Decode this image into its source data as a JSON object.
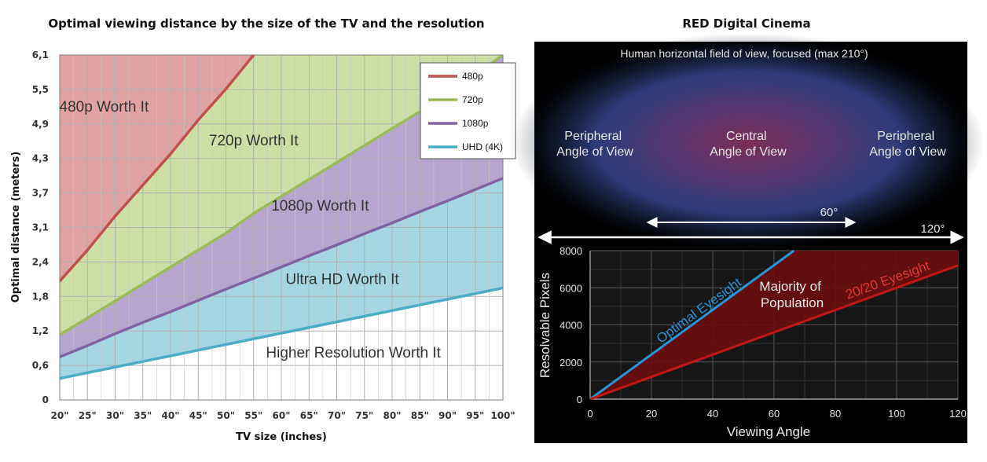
{
  "chart_data": [
    {
      "type": "area",
      "title": "Optimal viewing distance by the size of the TV and the resolution",
      "xlabel": "TV size (inches)",
      "ylabel": "Optimal distance (meters)",
      "x_ticks": [
        "20\"",
        "25\"",
        "30\"",
        "35\"",
        "40\"",
        "45\"",
        "50\"",
        "55\"",
        "60\"",
        "65\"",
        "70\"",
        "75\"",
        "80\"",
        "85\"",
        "90\"",
        "95\"",
        "100\""
      ],
      "y_ticks": [
        "0",
        "0,6",
        "1,2",
        "1,8",
        "2,4",
        "3,1",
        "3,7",
        "4,3",
        "4,9",
        "5,5",
        "6,1"
      ],
      "xlim": [
        20,
        100
      ],
      "ylim": [
        0,
        6.1
      ],
      "grid": true,
      "legend_position": "top-right",
      "x": [
        20,
        25,
        30,
        35,
        40,
        45,
        50,
        55,
        60,
        65,
        70,
        75,
        80,
        85,
        90,
        95,
        100
      ],
      "series": [
        {
          "name": "480p",
          "color": "#c0504d",
          "values": [
            2.1,
            2.65,
            3.25,
            3.8,
            4.35,
            4.95,
            5.5,
            6.1,
            null,
            null,
            null,
            null,
            null,
            null,
            null,
            null,
            null
          ]
        },
        {
          "name": "720p",
          "color": "#9bbb59",
          "values": [
            1.15,
            1.45,
            1.75,
            2.05,
            2.35,
            2.65,
            2.95,
            3.3,
            3.6,
            3.9,
            4.2,
            4.5,
            4.8,
            5.1,
            5.4,
            5.75,
            6.1
          ]
        },
        {
          "name": "1080p",
          "color": "#8064a2",
          "values": [
            0.76,
            0.96,
            1.17,
            1.37,
            1.56,
            1.76,
            1.96,
            2.15,
            2.35,
            2.55,
            2.74,
            2.94,
            3.13,
            3.33,
            3.52,
            3.72,
            3.92
          ]
        },
        {
          "name": "UHD (4K)",
          "color": "#4bacc6",
          "values": [
            0.38,
            0.48,
            0.58,
            0.68,
            0.78,
            0.88,
            0.98,
            1.08,
            1.18,
            1.28,
            1.38,
            1.48,
            1.58,
            1.68,
            1.78,
            1.88,
            1.98
          ]
        }
      ],
      "region_labels": [
        {
          "text": "480p Worth It",
          "x": 28,
          "y": 5.1,
          "fill": "#c0504d"
        },
        {
          "text": "720p Worth It",
          "x": 55,
          "y": 4.5,
          "fill": "#9bbb59"
        },
        {
          "text": "1080p Worth It",
          "x": 67,
          "y": 3.35,
          "fill": "#8064a2"
        },
        {
          "text": "Ultra HD Worth It",
          "x": 71,
          "y": 2.05,
          "fill": "#4bacc6"
        },
        {
          "text": "Higher Resolution Worth It",
          "x": 73,
          "y": 0.75,
          "fill": "#ffffff"
        }
      ]
    },
    {
      "type": "line",
      "title": "RED Digital Cinema",
      "field_of_view_title": "Human horizontal field of view, focused (max 210°)",
      "fov_labels": {
        "peripheral_left": [
          "Peripheral",
          "Angle of View"
        ],
        "central": [
          "Central",
          "Angle of View"
        ],
        "peripheral_right": [
          "Peripheral",
          "Angle of View"
        ],
        "angle_60": "60°",
        "angle_120": "120°"
      },
      "xlabel": "Viewing Angle",
      "ylabel": "Resolvable Pixels",
      "x_ticks": [
        "0",
        "20",
        "40",
        "60",
        "80",
        "100",
        "120"
      ],
      "y_ticks": [
        "0",
        "2000",
        "4000",
        "6000",
        "8000"
      ],
      "xlim": [
        0,
        120
      ],
      "ylim": [
        0,
        8000
      ],
      "grid": true,
      "series": [
        {
          "name": "Optimal Eyesight",
          "color": "#2a95d5",
          "x": [
            0,
            66.5
          ],
          "y": [
            0,
            8000
          ]
        },
        {
          "name": "20/20 Eyesight",
          "color": "#c01818",
          "x": [
            0,
            120
          ],
          "y": [
            0,
            7200
          ]
        }
      ],
      "region_label": [
        "Majority of",
        "Population"
      ]
    }
  ]
}
